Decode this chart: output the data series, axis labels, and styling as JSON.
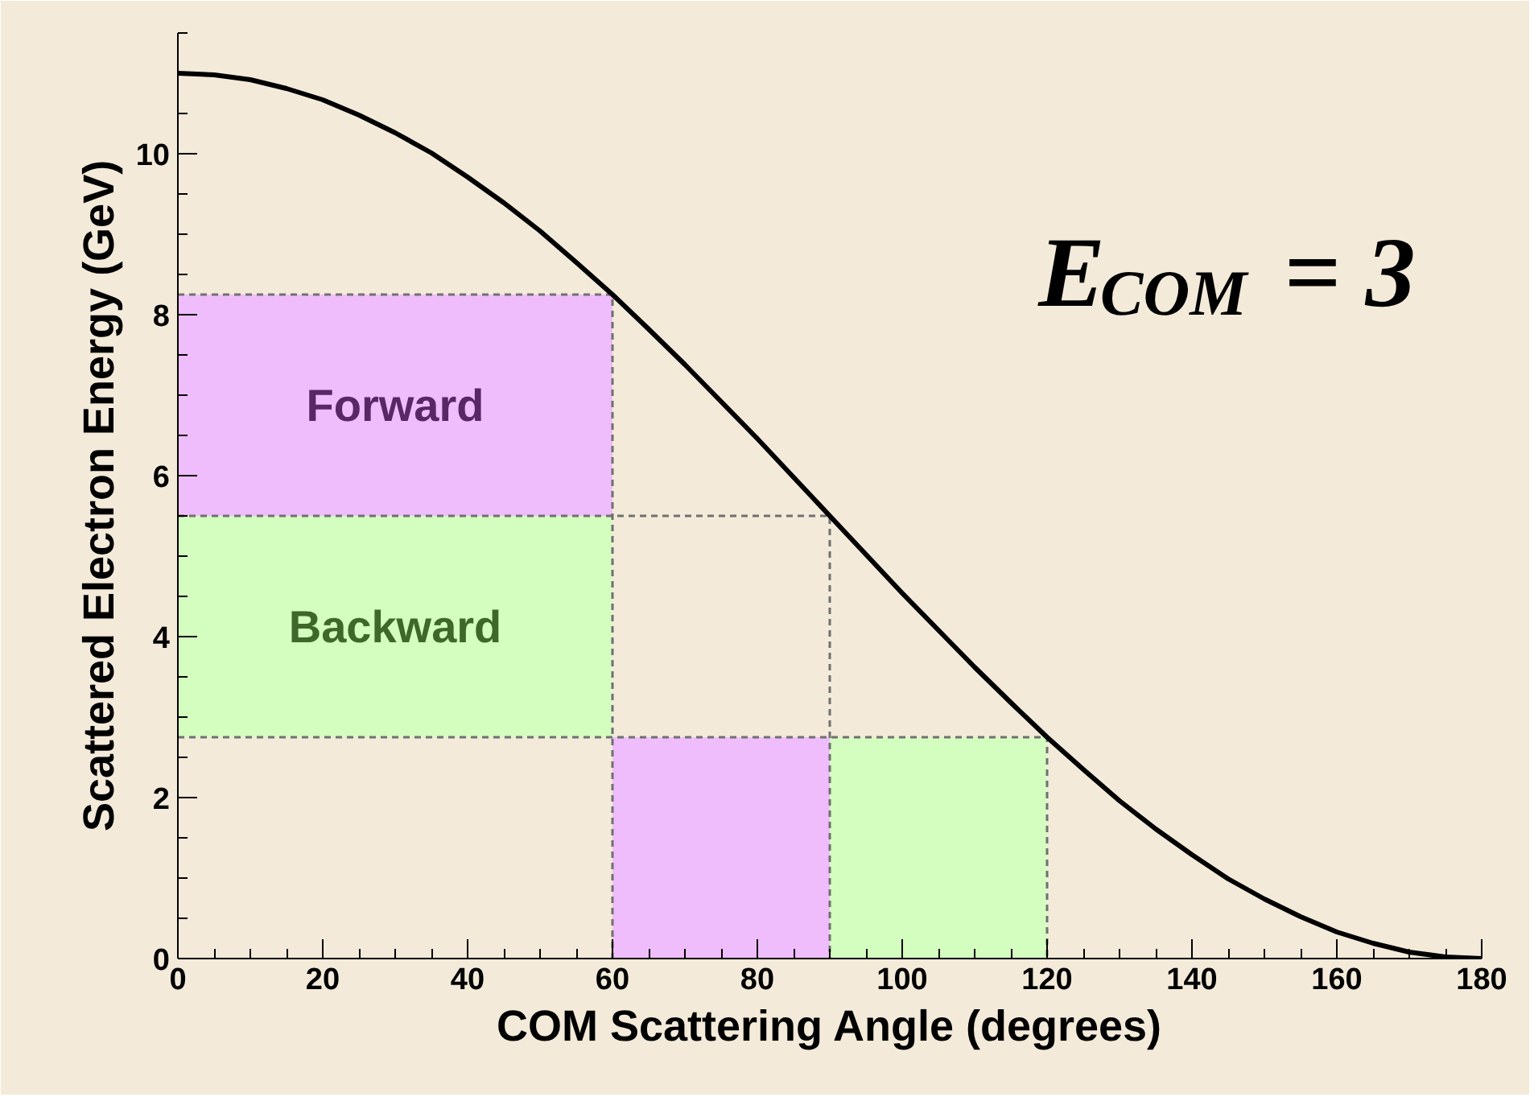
{
  "chart_data": {
    "type": "line",
    "xlabel": "COM Scattering Angle (degrees)",
    "ylabel": "Scattered Electron Energy (GeV)",
    "xlim": [
      0,
      180
    ],
    "ylim": [
      0,
      11.5
    ],
    "xticks": [
      0,
      20,
      40,
      60,
      80,
      100,
      120,
      140,
      160,
      180
    ],
    "yticks": [
      0,
      2,
      4,
      6,
      8,
      10
    ],
    "grid": false,
    "legend": false,
    "annotations": [
      "E$_{COM}$ = 3"
    ],
    "series": [
      {
        "type": "bar",
        "name": "Forward",
        "color": "#efbdfb",
        "x": [
          15,
          45,
          75
        ],
        "values": [
          2.75,
          2.75,
          2.75
        ],
        "base": [
          5.5,
          5.5,
          0
        ]
      },
      {
        "type": "bar",
        "name": "Backward",
        "color": "#d4fdc0",
        "x": [
          15,
          45,
          105
        ],
        "values": [
          2.75,
          2.75,
          2.75
        ],
        "base": [
          2.75,
          2.75,
          0
        ]
      },
      {
        "type": "line",
        "color": "#707070",
        "x": [
          0,
          60,
          60
        ],
        "values": [
          8.25,
          8.25,
          0
        ],
        "line_style": "dashed"
      },
      {
        "type": "line",
        "color": "#707070",
        "x": [
          0,
          90,
          90
        ],
        "values": [
          5.5,
          5.5,
          0
        ],
        "line_style": "dashed"
      },
      {
        "type": "line",
        "color": "#707070",
        "x": [
          0,
          120,
          120
        ],
        "values": [
          2.75,
          2.75,
          0
        ],
        "line_style": "dashed"
      },
      {
        "color": "#000000",
        "line_style": "solid",
        "x": [
          0,
          5,
          10,
          15,
          20,
          25,
          30,
          35,
          40,
          45,
          50,
          55,
          60,
          65,
          70,
          75,
          80,
          85,
          90,
          95,
          100,
          105,
          110,
          115,
          120,
          125,
          130,
          135,
          140,
          145,
          150,
          155,
          160,
          165,
          170,
          175,
          180
        ],
        "values": [
          11.0,
          10.98,
          10.92,
          10.81,
          10.67,
          10.48,
          10.26,
          10.01,
          9.71,
          9.39,
          9.04,
          8.65,
          8.25,
          7.82,
          7.38,
          6.92,
          6.46,
          5.98,
          5.5,
          5.02,
          4.54,
          4.08,
          3.62,
          3.18,
          2.75,
          2.35,
          1.96,
          1.61,
          1.29,
          0.99,
          0.74,
          0.52,
          0.33,
          0.19,
          0.08,
          0.02,
          0.0
        ]
      }
    ]
  }
}
